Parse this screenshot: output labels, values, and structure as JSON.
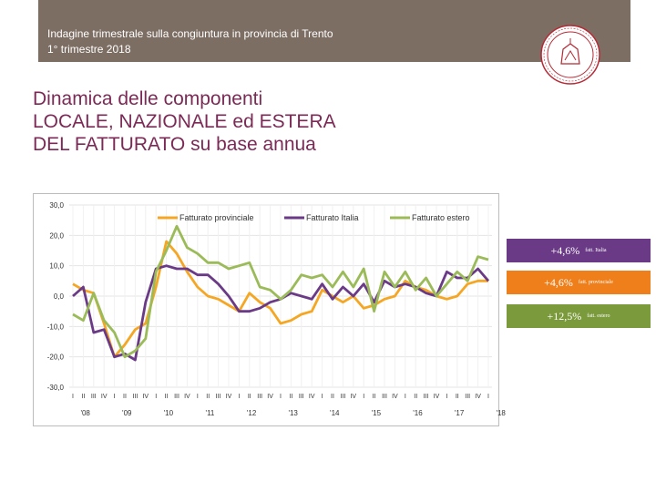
{
  "header": {
    "line1": "Indagine trimestrale sulla congiuntura in provincia di Trento",
    "line2": "1° trimestre 2018",
    "band_color": "#7d6e64",
    "logo_icon": "university-seal-icon"
  },
  "title": {
    "line1": "Dinamica delle componenti",
    "line2": "LOCALE, NAZIONALE ed ESTERA",
    "line3": "DEL FATTURATO su base annua",
    "color": "#7b2a55"
  },
  "callouts": [
    {
      "value": "+4,6%",
      "label": "fatt. Italia",
      "color": "#6a3a86"
    },
    {
      "value": "+4,6%",
      "label": "fatt. provinciale",
      "color": "#ef7f1a"
    },
    {
      "value": "+12,5%",
      "label": "fatt. estero",
      "color": "#7a9a3c"
    }
  ],
  "chart_data": {
    "type": "line",
    "ylim": [
      -30,
      30
    ],
    "yticks": [
      "30,0",
      "20,0",
      "10,0",
      "0,0",
      "-10,0",
      "-20,0",
      "-30,0"
    ],
    "quarter_labels": [
      "I",
      "II",
      "III",
      "IV",
      "I",
      "II",
      "III",
      "IV",
      "I",
      "II",
      "III",
      "IV",
      "I",
      "II",
      "III",
      "IV",
      "I",
      "II",
      "III",
      "IV",
      "I",
      "II",
      "III",
      "IV",
      "I",
      "II",
      "III",
      "IV",
      "I",
      "II",
      "III",
      "IV",
      "I",
      "II",
      "III",
      "IV",
      "I",
      "II",
      "III",
      "IV",
      "I"
    ],
    "year_labels": [
      "'08",
      "'09",
      "'10",
      "'11",
      "'12",
      "'13",
      "'14",
      "'15",
      "'16",
      "'17",
      "'18"
    ],
    "grid": true,
    "legend_position": "top",
    "series": [
      {
        "name": "Fatturato provinciale",
        "color": "#f5a623",
        "values": [
          4,
          2,
          1,
          -9,
          -20,
          -16,
          -11,
          -9,
          3,
          18,
          14,
          8,
          3,
          0,
          -1,
          -3,
          -5,
          1,
          -2,
          -4,
          -9,
          -8,
          -6,
          -5,
          2,
          0,
          -2,
          0,
          -4,
          -3,
          -1,
          0,
          5,
          3,
          2,
          0,
          -1,
          0,
          4,
          5,
          5
        ]
      },
      {
        "name": "Fatturato Italia",
        "color": "#6a3a86",
        "values": [
          0,
          3,
          -12,
          -11,
          -20,
          -19,
          -21,
          -2,
          9,
          10,
          9,
          9,
          7,
          7,
          4,
          0,
          -5,
          -5,
          -4,
          -2,
          -1,
          1,
          0,
          -1,
          4,
          -1,
          3,
          0,
          4,
          -2,
          5,
          3,
          4,
          3,
          1,
          0,
          8,
          6,
          6,
          9,
          5
        ]
      },
      {
        "name": "Fatturato estero",
        "color": "#9bbb59",
        "values": [
          -6,
          -8,
          1,
          -8,
          -12,
          -20,
          -18,
          -14,
          8,
          15,
          23,
          16,
          14,
          11,
          11,
          9,
          10,
          11,
          3,
          2,
          -1,
          2,
          7,
          6,
          7,
          3,
          8,
          3,
          9,
          -5,
          8,
          3,
          8,
          2,
          6,
          0,
          4,
          8,
          5,
          13,
          12
        ]
      }
    ]
  }
}
